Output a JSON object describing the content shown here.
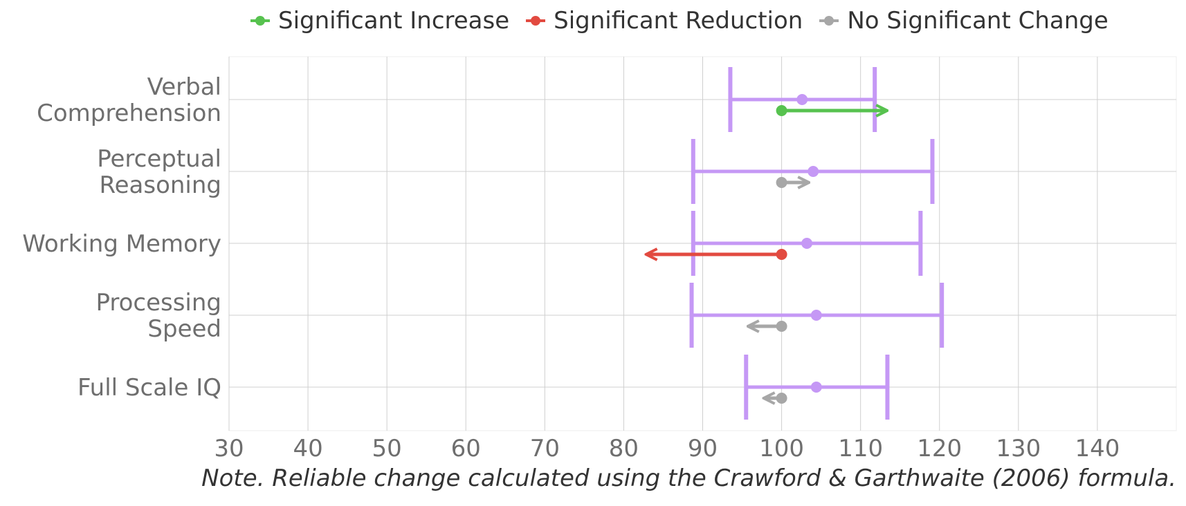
{
  "chart_data": {
    "type": "scatter",
    "title": "",
    "xlabel": "",
    "ylabel": "",
    "xlim": [
      30,
      150
    ],
    "xticks": [
      30,
      40,
      50,
      60,
      70,
      80,
      90,
      100,
      110,
      120,
      130,
      140
    ],
    "grid": true,
    "legend_position": "top-right",
    "colors": {
      "interval": "#c598f5",
      "increase": "#57c24f",
      "reduction": "#e24a40",
      "no_change": "#a7a7a7",
      "grid": "#cfcfcf"
    },
    "legend": [
      {
        "key": "increase",
        "label": "Significant Increase"
      },
      {
        "key": "reduction",
        "label": "Significant Reduction"
      },
      {
        "key": "no_change",
        "label": "No Significant Change"
      }
    ],
    "categories": [
      {
        "label": [
          "Verbal",
          "Comprehension"
        ],
        "score": 102.6,
        "ci_low": 93.5,
        "ci_high": 111.8,
        "change_start": 100,
        "change_end": 113.2,
        "status": "increase"
      },
      {
        "label": [
          "Perceptual",
          "Reasoning"
        ],
        "score": 104,
        "ci_low": 88.8,
        "ci_high": 119.1,
        "change_start": 100,
        "change_end": 103.3,
        "status": "no_change"
      },
      {
        "label": [
          "Working Memory"
        ],
        "score": 103.2,
        "ci_low": 88.8,
        "ci_high": 117.6,
        "change_start": 100,
        "change_end": 83,
        "status": "reduction"
      },
      {
        "label": [
          "Processing",
          "Speed"
        ],
        "score": 104.4,
        "ci_low": 88.6,
        "ci_high": 120.3,
        "change_start": 100,
        "change_end": 95.9,
        "status": "no_change"
      },
      {
        "label": [
          "Full Scale IQ"
        ],
        "score": 104.4,
        "ci_low": 95.5,
        "ci_high": 113.4,
        "change_start": 100,
        "change_end": 97.9,
        "status": "no_change"
      }
    ],
    "note": "Note. Reliable change calculated using the Crawford & Garthwaite (2006) formula."
  }
}
